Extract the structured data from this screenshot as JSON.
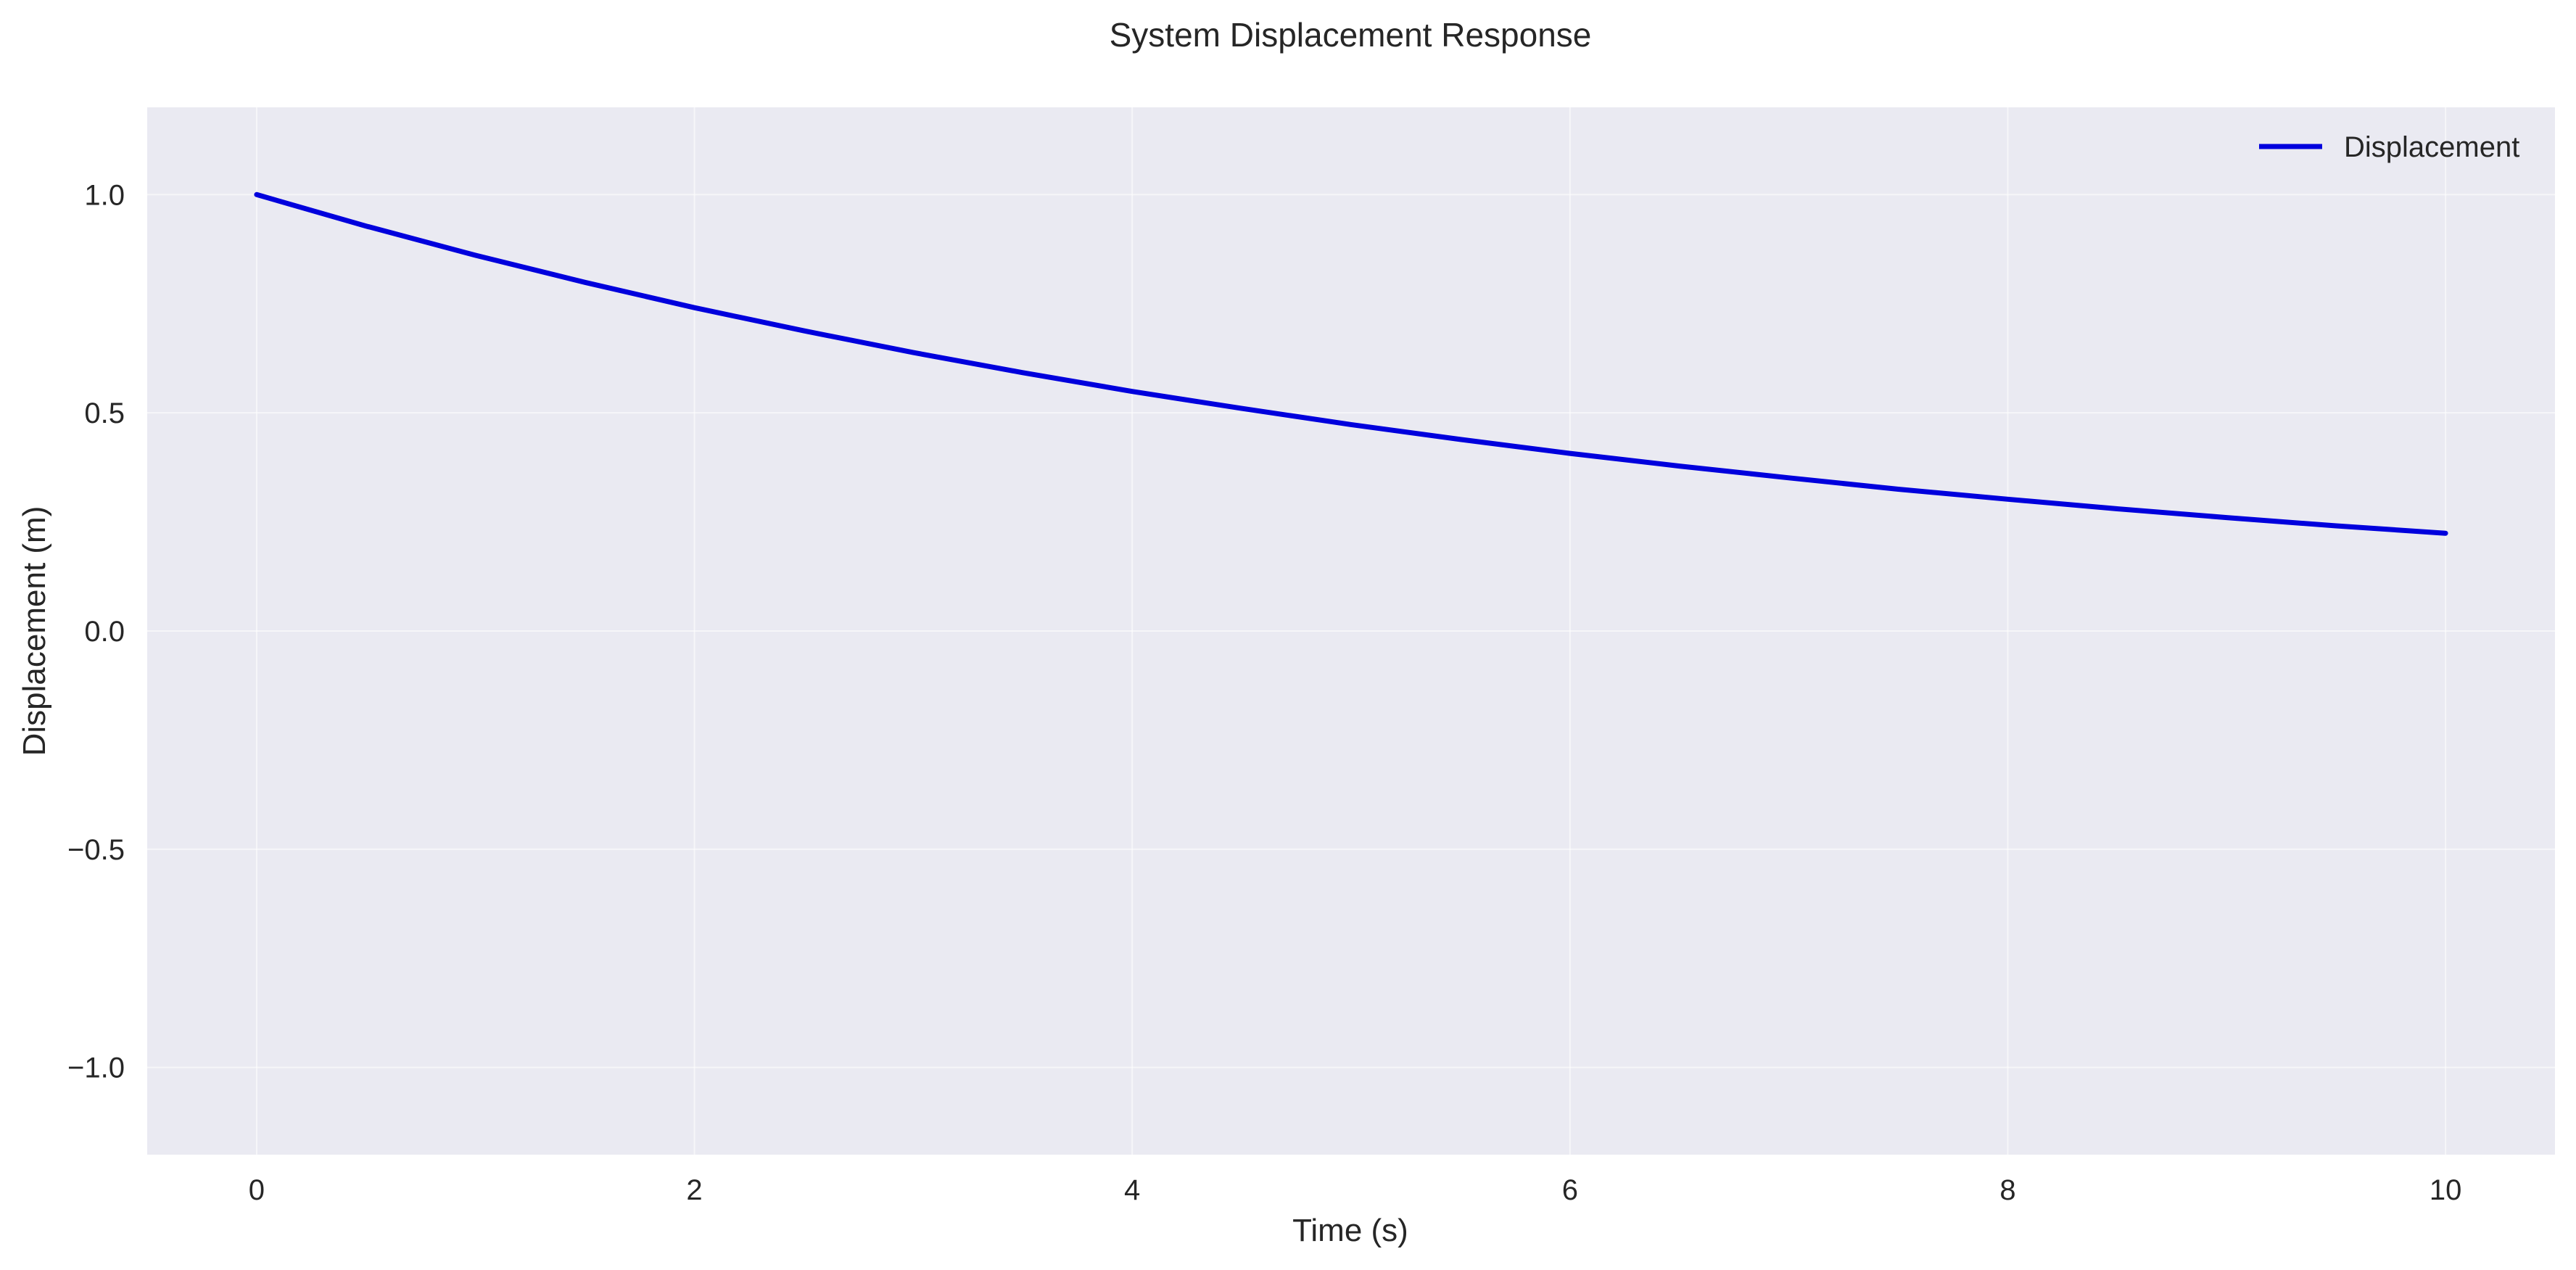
{
  "chart_data": {
    "type": "line",
    "title": "System Displacement Response",
    "xlabel": "Time (s)",
    "ylabel": "Displacement (m)",
    "xlim": [
      -0.5,
      10.5
    ],
    "ylim": [
      -1.2,
      1.2
    ],
    "x_ticks": [
      0,
      2,
      4,
      6,
      8,
      10
    ],
    "x_tick_labels": [
      "0",
      "2",
      "4",
      "6",
      "8",
      "10"
    ],
    "y_ticks": [
      1.0,
      0.5,
      0.0,
      -0.5,
      -1.0
    ],
    "y_tick_labels": [
      "1.0",
      "0.5",
      "0.0",
      "−0.5",
      "−1.0"
    ],
    "grid": true,
    "legend_position": "top-right",
    "background_color": "#eaeaf2",
    "series": [
      {
        "name": "Displacement",
        "color": "#0000dd",
        "x": [
          0,
          0.5,
          1,
          1.5,
          2,
          2.5,
          3,
          3.5,
          4,
          4.5,
          5,
          5.5,
          6,
          6.5,
          7,
          7.5,
          8,
          8.5,
          9,
          9.5,
          10
        ],
        "y": [
          1.0,
          0.928,
          0.861,
          0.799,
          0.741,
          0.688,
          0.638,
          0.592,
          0.549,
          0.51,
          0.473,
          0.439,
          0.407,
          0.378,
          0.351,
          0.325,
          0.302,
          0.28,
          0.26,
          0.241,
          0.224
        ]
      }
    ]
  }
}
